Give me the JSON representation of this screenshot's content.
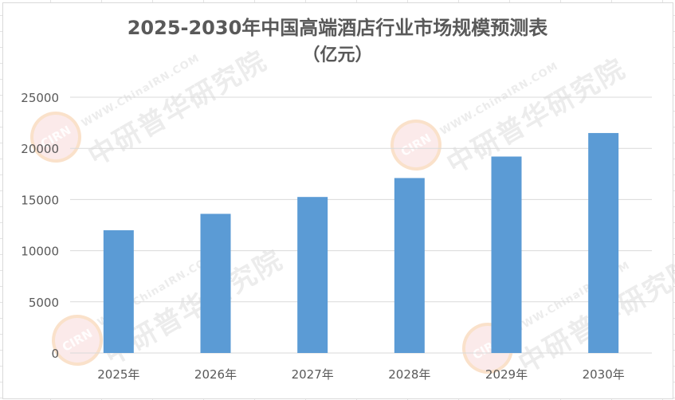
{
  "chart_data": {
    "type": "bar",
    "title": "2025-2030年中国高端酒店行业市场规模预测表",
    "subtitle": "（亿元）",
    "categories": [
      "2025年",
      "2026年",
      "2027年",
      "2028年",
      "2029年",
      "2030年"
    ],
    "values": [
      12000,
      13600,
      15250,
      17100,
      19200,
      21500
    ],
    "ylim": [
      0,
      25000
    ],
    "yticks": [
      "0",
      "5000",
      "10000",
      "15000",
      "20000",
      "25000"
    ],
    "ytick_values": [
      0,
      5000,
      10000,
      15000,
      20000,
      25000
    ],
    "grid": true,
    "bar_color": "#5b9bd5",
    "grid_color": "#d9d9d9",
    "text_color": "#595959"
  },
  "watermark": {
    "url": "WWW.ChinaIRN.COM",
    "name": "中研普华研究院",
    "logo": "CIRN"
  }
}
